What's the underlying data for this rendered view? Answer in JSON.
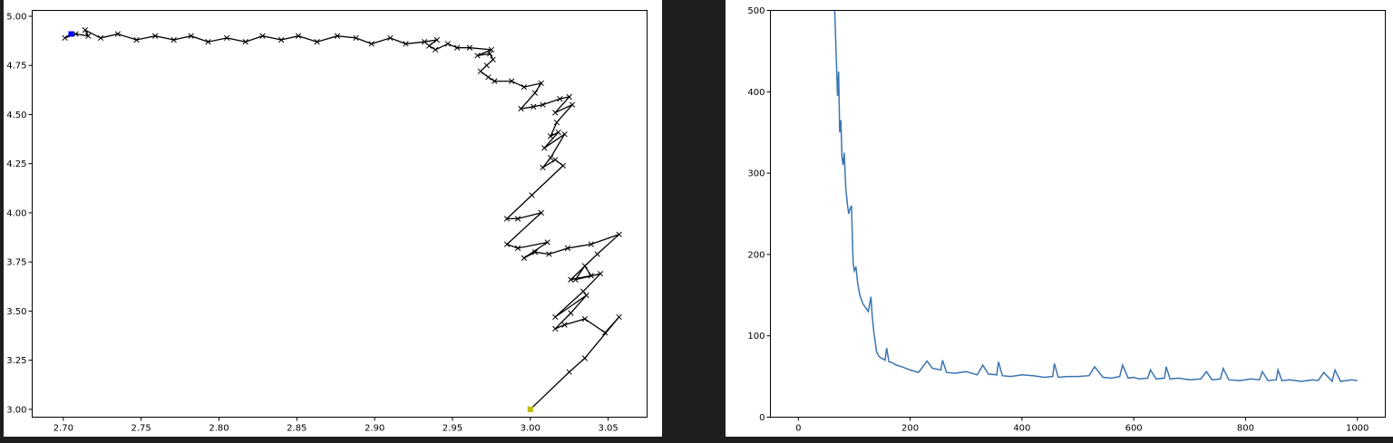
{
  "colors": {
    "page_background": "#1e1e1e",
    "panel_background": "#ffffff",
    "path_line": "#000000",
    "start_marker": "#0000ff",
    "end_marker": "#bfbf00",
    "loss_line": "#3b75af"
  },
  "chart_data": [
    {
      "type": "line",
      "title": "",
      "xlabel": "",
      "ylabel": "",
      "grid": false,
      "xlim": [
        2.68,
        3.075
      ],
      "ylim": [
        2.96,
        5.03
      ],
      "xticks": [
        2.7,
        2.75,
        2.8,
        2.85,
        2.9,
        2.95,
        3.0,
        3.05
      ],
      "xtick_labels": [
        "2.70",
        "2.75",
        "2.80",
        "2.85",
        "2.90",
        "2.95",
        "3.00",
        "3.05"
      ],
      "yticks": [
        3.0,
        3.25,
        3.5,
        3.75,
        4.0,
        4.25,
        4.5,
        4.75,
        5.0
      ],
      "ytick_labels": [
        "3.00",
        "3.25",
        "3.50",
        "3.75",
        "4.00",
        "4.25",
        "4.50",
        "4.75",
        "5.00"
      ],
      "series": [
        {
          "marker": "x",
          "points": [
            [
              3.0,
              3.0
            ],
            [
              3.025,
              3.19
            ],
            [
              3.035,
              3.26
            ],
            [
              3.057,
              3.47
            ],
            [
              3.048,
              3.39
            ],
            [
              3.035,
              3.46
            ],
            [
              3.022,
              3.43
            ],
            [
              3.016,
              3.41
            ],
            [
              3.026,
              3.49
            ],
            [
              3.036,
              3.58
            ],
            [
              3.016,
              3.47
            ],
            [
              3.034,
              3.6
            ],
            [
              3.045,
              3.69
            ],
            [
              3.029,
              3.66
            ],
            [
              3.035,
              3.73
            ],
            [
              3.039,
              3.68
            ],
            [
              3.026,
              3.66
            ],
            [
              3.043,
              3.79
            ],
            [
              3.057,
              3.89
            ],
            [
              3.039,
              3.84
            ],
            [
              3.024,
              3.82
            ],
            [
              3.012,
              3.79
            ],
            [
              3.003,
              3.8
            ],
            [
              2.996,
              3.77
            ],
            [
              3.011,
              3.85
            ],
            [
              2.992,
              3.82
            ],
            [
              2.985,
              3.84
            ],
            [
              3.007,
              4.0
            ],
            [
              2.992,
              3.97
            ],
            [
              2.985,
              3.97
            ],
            [
              3.001,
              4.09
            ],
            [
              3.021,
              4.24
            ],
            [
              3.016,
              4.27
            ],
            [
              3.008,
              4.23
            ],
            [
              3.013,
              4.28
            ],
            [
              3.022,
              4.4
            ],
            [
              3.009,
              4.33
            ],
            [
              3.018,
              4.41
            ],
            [
              3.013,
              4.39
            ],
            [
              3.017,
              4.46
            ],
            [
              3.027,
              4.55
            ],
            [
              3.016,
              4.51
            ],
            [
              3.025,
              4.59
            ],
            [
              3.019,
              4.58
            ],
            [
              3.008,
              4.55
            ],
            [
              3.002,
              4.54
            ],
            [
              2.994,
              4.53
            ],
            [
              3.003,
              4.61
            ],
            [
              3.007,
              4.66
            ],
            [
              2.996,
              4.64
            ],
            [
              2.988,
              4.67
            ],
            [
              2.977,
              4.67
            ],
            [
              2.973,
              4.69
            ],
            [
              2.968,
              4.72
            ],
            [
              2.972,
              4.75
            ],
            [
              2.976,
              4.78
            ],
            [
              2.974,
              4.81
            ],
            [
              2.966,
              4.8
            ],
            [
              2.975,
              4.83
            ],
            [
              2.961,
              4.84
            ],
            [
              2.953,
              4.84
            ],
            [
              2.947,
              4.86
            ],
            [
              2.939,
              4.83
            ],
            [
              2.935,
              4.85
            ],
            [
              2.94,
              4.88
            ],
            [
              2.932,
              4.87
            ],
            [
              2.92,
              4.86
            ],
            [
              2.91,
              4.89
            ],
            [
              2.898,
              4.86
            ],
            [
              2.888,
              4.89
            ],
            [
              2.876,
              4.9
            ],
            [
              2.863,
              4.87
            ],
            [
              2.851,
              4.9
            ],
            [
              2.84,
              4.88
            ],
            [
              2.828,
              4.9
            ],
            [
              2.817,
              4.87
            ],
            [
              2.805,
              4.89
            ],
            [
              2.793,
              4.87
            ],
            [
              2.782,
              4.9
            ],
            [
              2.771,
              4.88
            ],
            [
              2.759,
              4.9
            ],
            [
              2.747,
              4.88
            ],
            [
              2.735,
              4.91
            ],
            [
              2.724,
              4.89
            ],
            [
              2.714,
              4.93
            ],
            [
              2.716,
              4.9
            ],
            [
              2.708,
              4.91
            ],
            [
              2.701,
              4.89
            ],
            [
              2.705,
              4.91
            ]
          ]
        }
      ],
      "start_point": [
        2.705,
        4.91
      ],
      "end_point": [
        3.0,
        3.0
      ]
    },
    {
      "type": "line",
      "title": "",
      "xlabel": "",
      "ylabel": "",
      "grid": false,
      "xlim": [
        -50,
        1050
      ],
      "ylim": [
        0,
        500
      ],
      "xticks": [
        0,
        200,
        400,
        600,
        800,
        1000
      ],
      "xtick_labels": [
        "0",
        "200",
        "400",
        "600",
        "800",
        "1000"
      ],
      "yticks": [
        0,
        100,
        200,
        300,
        400,
        500
      ],
      "ytick_labels": [
        "0",
        "100",
        "200",
        "300",
        "400",
        "500"
      ],
      "series": [
        {
          "x": [
            65,
            68,
            70,
            72,
            74,
            76,
            78,
            80,
            82,
            85,
            88,
            90,
            92,
            95,
            98,
            100,
            103,
            106,
            110,
            115,
            120,
            125,
            130,
            132,
            135,
            140,
            145,
            150,
            155,
            158,
            162,
            168,
            175,
            185,
            200,
            215,
            225,
            230,
            240,
            255,
            258,
            265,
            280,
            300,
            320,
            330,
            340,
            355,
            358,
            365,
            380,
            400,
            420,
            440,
            455,
            458,
            465,
            480,
            500,
            520,
            530,
            545,
            560,
            575,
            580,
            590,
            600,
            610,
            625,
            630,
            640,
            655,
            658,
            665,
            680,
            700,
            720,
            730,
            740,
            755,
            760,
            770,
            790,
            810,
            825,
            830,
            840,
            855,
            858,
            865,
            880,
            900,
            920,
            930,
            940,
            955,
            960,
            970,
            990,
            1000
          ],
          "y": [
            500,
            440,
            395,
            425,
            350,
            365,
            320,
            310,
            325,
            280,
            260,
            250,
            255,
            260,
            190,
            180,
            185,
            165,
            150,
            140,
            135,
            130,
            148,
            125,
            105,
            80,
            74,
            72,
            70,
            85,
            68,
            67,
            64,
            62,
            58,
            55,
            64,
            69,
            60,
            58,
            70,
            55,
            54,
            56,
            52,
            64,
            53,
            52,
            68,
            51,
            50,
            52,
            51,
            49,
            50,
            66,
            49,
            50,
            50,
            51,
            62,
            49,
            48,
            50,
            64,
            48,
            49,
            47,
            48,
            58,
            47,
            48,
            62,
            47,
            48,
            46,
            47,
            56,
            46,
            47,
            60,
            46,
            45,
            47,
            46,
            56,
            45,
            46,
            58,
            45,
            46,
            44,
            46,
            45,
            55,
            44,
            58,
            44,
            46,
            45
          ]
        }
      ]
    }
  ]
}
